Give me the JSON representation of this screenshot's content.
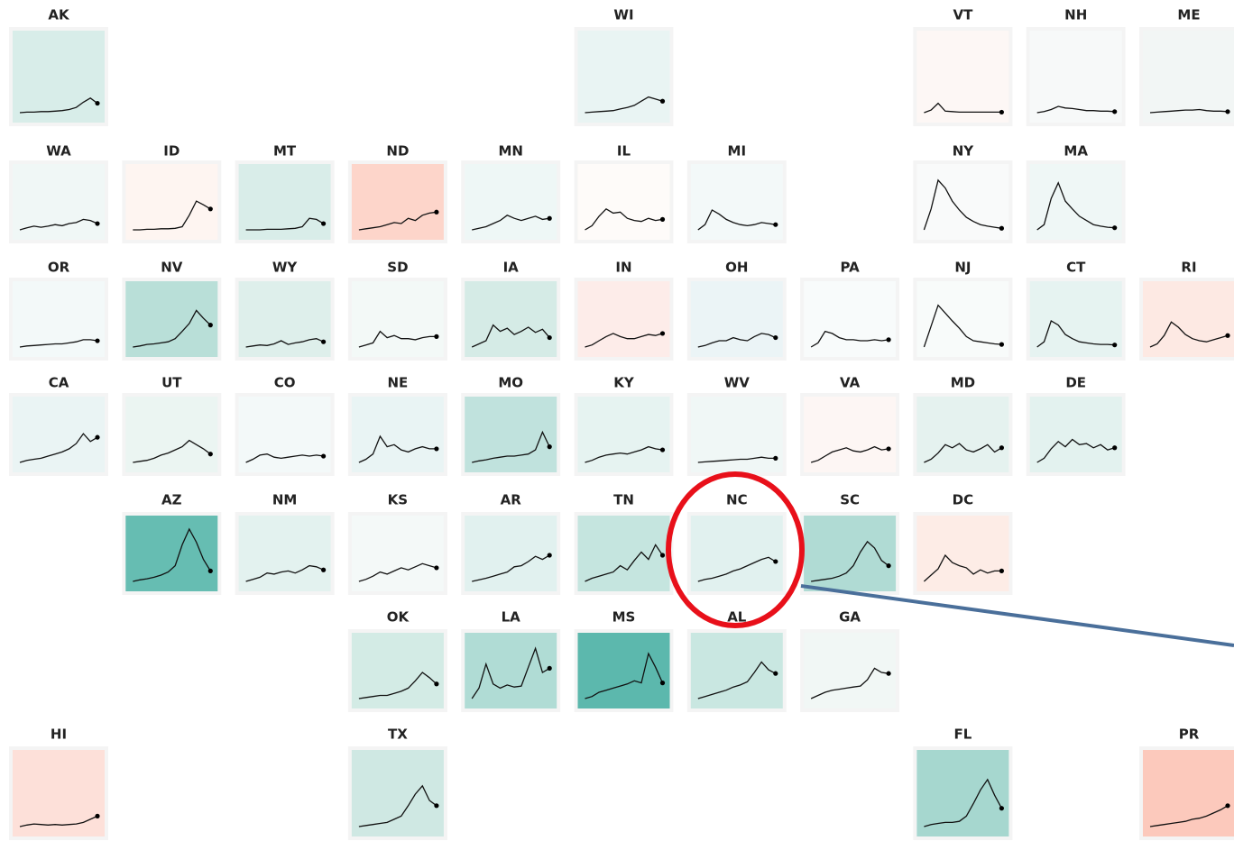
{
  "ylim": [
    0,
    100
  ],
  "tiles": [
    {
      "label": "AK",
      "color": "#d8ede9",
      "values": [
        0,
        1,
        1,
        2,
        2,
        3,
        4,
        6,
        10,
        20,
        28,
        18
      ]
    },
    {
      "label": "WI",
      "color": "#e9f4f3",
      "values": [
        0,
        1,
        2,
        3,
        4,
        7,
        10,
        14,
        22,
        30,
        26,
        22
      ]
    },
    {
      "label": "VT",
      "color": "#fdf7f5",
      "values": [
        0,
        5,
        18,
        3,
        2,
        1,
        1,
        1,
        1,
        1,
        1,
        1
      ]
    },
    {
      "label": "NH",
      "color": "#f7f9f9",
      "values": [
        0,
        2,
        6,
        12,
        9,
        8,
        6,
        4,
        4,
        3,
        3,
        2
      ]
    },
    {
      "label": "ME",
      "color": "#f2f6f5",
      "values": [
        0,
        1,
        2,
        3,
        4,
        5,
        5,
        6,
        4,
        3,
        3,
        2
      ]
    },
    {
      "label": "WA",
      "color": "#f0f7f6",
      "values": [
        0,
        4,
        7,
        5,
        7,
        10,
        8,
        12,
        14,
        20,
        18,
        12
      ]
    },
    {
      "label": "ID",
      "color": "#fef5f1",
      "values": [
        0,
        0,
        1,
        1,
        2,
        2,
        3,
        6,
        28,
        55,
        48,
        40
      ]
    },
    {
      "label": "MT",
      "color": "#d9ede9",
      "values": [
        0,
        0,
        0,
        1,
        1,
        1,
        2,
        3,
        6,
        22,
        20,
        12
      ]
    },
    {
      "label": "ND",
      "color": "#fdd5ca",
      "values": [
        0,
        2,
        4,
        6,
        10,
        14,
        12,
        22,
        18,
        28,
        32,
        34
      ]
    },
    {
      "label": "MN",
      "color": "#eef7f6",
      "values": [
        0,
        3,
        6,
        12,
        18,
        28,
        22,
        18,
        22,
        26,
        20,
        22
      ]
    },
    {
      "label": "IL",
      "color": "#fefbf9",
      "values": [
        0,
        8,
        26,
        40,
        32,
        34,
        22,
        18,
        16,
        22,
        18,
        20
      ]
    },
    {
      "label": "MI",
      "color": "#f3f9f9",
      "values": [
        0,
        10,
        38,
        30,
        20,
        14,
        10,
        8,
        10,
        14,
        12,
        10
      ]
    },
    {
      "label": "NY",
      "color": "#f9fafa",
      "values": [
        0,
        40,
        95,
        80,
        55,
        38,
        24,
        16,
        10,
        7,
        5,
        3
      ]
    },
    {
      "label": "MA",
      "color": "#eff7f6",
      "values": [
        0,
        10,
        60,
        90,
        55,
        40,
        26,
        18,
        10,
        7,
        5,
        4
      ]
    },
    {
      "label": "OR",
      "color": "#f3f9f9",
      "values": [
        0,
        2,
        3,
        4,
        5,
        6,
        6,
        8,
        10,
        14,
        14,
        12
      ]
    },
    {
      "label": "NV",
      "color": "#b9dfd8",
      "values": [
        0,
        2,
        5,
        6,
        8,
        10,
        16,
        30,
        45,
        70,
        55,
        42
      ]
    },
    {
      "label": "WY",
      "color": "#deefeb",
      "values": [
        0,
        2,
        4,
        3,
        6,
        12,
        5,
        8,
        10,
        14,
        16,
        10
      ]
    },
    {
      "label": "SD",
      "color": "#f3f9f7",
      "values": [
        0,
        4,
        8,
        30,
        18,
        22,
        16,
        16,
        14,
        18,
        20,
        20
      ]
    },
    {
      "label": "IA",
      "color": "#d5ebe6",
      "values": [
        0,
        6,
        12,
        42,
        30,
        36,
        24,
        30,
        38,
        28,
        34,
        18
      ]
    },
    {
      "label": "IN",
      "color": "#fdece9",
      "values": [
        0,
        4,
        12,
        20,
        26,
        20,
        16,
        16,
        20,
        24,
        22,
        26
      ]
    },
    {
      "label": "OH",
      "color": "#ebf4f6",
      "values": [
        0,
        3,
        8,
        12,
        12,
        18,
        14,
        12,
        20,
        26,
        24,
        18
      ]
    },
    {
      "label": "PA",
      "color": "#f8fbfb",
      "values": [
        0,
        8,
        30,
        26,
        18,
        14,
        14,
        12,
        12,
        14,
        12,
        14
      ]
    },
    {
      "label": "NJ",
      "color": "#f8fbfa",
      "values": [
        0,
        40,
        80,
        65,
        50,
        36,
        20,
        12,
        10,
        8,
        6,
        5
      ]
    },
    {
      "label": "CT",
      "color": "#e6f3f1",
      "values": [
        0,
        10,
        50,
        42,
        24,
        16,
        10,
        8,
        6,
        5,
        5,
        4
      ]
    },
    {
      "label": "RI",
      "color": "#fde9e3",
      "values": [
        0,
        6,
        22,
        48,
        38,
        24,
        16,
        12,
        10,
        14,
        18,
        22
      ]
    },
    {
      "label": "CA",
      "color": "#eaf4f4",
      "values": [
        0,
        4,
        6,
        8,
        12,
        16,
        20,
        26,
        36,
        55,
        40,
        48
      ]
    },
    {
      "label": "UT",
      "color": "#ebf5f2",
      "values": [
        0,
        2,
        4,
        8,
        14,
        18,
        24,
        30,
        42,
        34,
        26,
        16
      ]
    },
    {
      "label": "CO",
      "color": "#f3f9f9",
      "values": [
        0,
        6,
        14,
        16,
        10,
        8,
        10,
        12,
        14,
        12,
        14,
        12
      ]
    },
    {
      "label": "NE",
      "color": "#e9f4f4",
      "values": [
        0,
        6,
        16,
        50,
        30,
        34,
        24,
        20,
        26,
        30,
        26,
        26
      ]
    },
    {
      "label": "MO",
      "color": "#c0e2dd",
      "values": [
        0,
        3,
        5,
        8,
        10,
        12,
        12,
        14,
        16,
        24,
        58,
        30
      ]
    },
    {
      "label": "KY",
      "color": "#e6f3f1",
      "values": [
        0,
        4,
        10,
        14,
        16,
        18,
        16,
        20,
        24,
        30,
        26,
        24
      ]
    },
    {
      "label": "WV",
      "color": "#f0f7f6",
      "values": [
        0,
        1,
        2,
        3,
        4,
        5,
        6,
        6,
        8,
        10,
        8,
        8
      ]
    },
    {
      "label": "VA",
      "color": "#fdf6f4",
      "values": [
        0,
        4,
        12,
        20,
        24,
        28,
        22,
        20,
        24,
        30,
        24,
        26
      ]
    },
    {
      "label": "MD",
      "color": "#e5f2ef",
      "values": [
        0,
        6,
        18,
        34,
        28,
        36,
        24,
        20,
        26,
        34,
        20,
        28
      ]
    },
    {
      "label": "DE",
      "color": "#e3f2ef",
      "values": [
        0,
        8,
        26,
        40,
        30,
        44,
        34,
        36,
        28,
        34,
        24,
        28
      ]
    },
    {
      "label": "AZ",
      "color": "#66bdb2",
      "values": [
        0,
        3,
        5,
        8,
        12,
        18,
        30,
        70,
        100,
        75,
        42,
        20
      ]
    },
    {
      "label": "NM",
      "color": "#e3f2ef",
      "values": [
        0,
        4,
        8,
        16,
        14,
        18,
        20,
        16,
        22,
        30,
        28,
        22
      ]
    },
    {
      "label": "KS",
      "color": "#f4f9f8",
      "values": [
        0,
        4,
        10,
        18,
        14,
        20,
        26,
        22,
        28,
        34,
        30,
        26
      ]
    },
    {
      "label": "AR",
      "color": "#e1f1ef",
      "values": [
        0,
        3,
        6,
        10,
        14,
        18,
        28,
        30,
        38,
        48,
        42,
        50
      ]
    },
    {
      "label": "TN",
      "color": "#c5e5df",
      "values": [
        0,
        6,
        10,
        14,
        18,
        30,
        22,
        40,
        56,
        42,
        70,
        50
      ]
    },
    {
      "label": "NC",
      "color": "#e1f1ef",
      "values": [
        0,
        4,
        6,
        10,
        14,
        20,
        24,
        30,
        36,
        42,
        46,
        38
      ]
    },
    {
      "label": "SC",
      "color": "#b0dbd4",
      "values": [
        0,
        2,
        4,
        6,
        10,
        16,
        30,
        56,
        76,
        64,
        40,
        30
      ]
    },
    {
      "label": "DC",
      "color": "#fdece6",
      "values": [
        0,
        12,
        24,
        50,
        36,
        30,
        26,
        14,
        22,
        16,
        20,
        20
      ]
    },
    {
      "label": "OK",
      "color": "#d3ebe5",
      "values": [
        0,
        2,
        4,
        6,
        6,
        10,
        14,
        20,
        34,
        50,
        40,
        28
      ]
    },
    {
      "label": "LA",
      "color": "#b0dcd5",
      "values": [
        0,
        20,
        66,
        28,
        20,
        26,
        22,
        24,
        60,
        96,
        50,
        58
      ]
    },
    {
      "label": "MS",
      "color": "#5cb8ad",
      "values": [
        0,
        4,
        12,
        16,
        20,
        24,
        28,
        34,
        30,
        86,
        60,
        30
      ]
    },
    {
      "label": "AL",
      "color": "#c9e7e1",
      "values": [
        0,
        4,
        8,
        12,
        16,
        22,
        26,
        32,
        50,
        70,
        55,
        48
      ]
    },
    {
      "label": "GA",
      "color": "#f1f7f5",
      "values": [
        0,
        6,
        12,
        16,
        18,
        20,
        22,
        24,
        36,
        58,
        50,
        48
      ]
    },
    {
      "label": "HI",
      "color": "#fde0d9",
      "values": [
        0,
        3,
        5,
        4,
        3,
        4,
        3,
        4,
        5,
        8,
        14,
        20
      ]
    },
    {
      "label": "TX",
      "color": "#cfe8e3",
      "values": [
        0,
        2,
        4,
        6,
        8,
        14,
        20,
        40,
        62,
        78,
        50,
        40
      ]
    },
    {
      "label": "FL",
      "color": "#a6d7cf",
      "values": [
        0,
        4,
        6,
        8,
        8,
        10,
        20,
        44,
        70,
        90,
        60,
        35
      ]
    },
    {
      "label": "PR",
      "color": "#fcc9bc",
      "values": [
        0,
        2,
        4,
        6,
        8,
        10,
        14,
        16,
        20,
        26,
        32,
        40
      ]
    }
  ]
}
